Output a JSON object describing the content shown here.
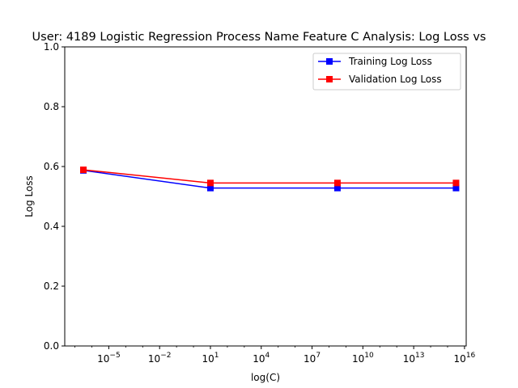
{
  "chart_data": {
    "type": "line",
    "title": "User: 4189 Logistic Regression Process Name Feature C Analysis: Log Loss vs",
    "xlabel": "log(C)",
    "ylabel": "Log Loss",
    "xscale": "log",
    "xlim_exp": [
      -7.6,
      16.1
    ],
    "ylim": [
      0.0,
      1.0
    ],
    "y_ticks": [
      "0.0",
      "0.2",
      "0.4",
      "0.6",
      "0.8",
      "1.0"
    ],
    "y_tick_values": [
      0.0,
      0.2,
      0.4,
      0.6,
      0.8,
      1.0
    ],
    "x_ticks": [
      {
        "exp": -5,
        "base": "10",
        "sup": "−5"
      },
      {
        "exp": -2,
        "base": "10",
        "sup": "−2"
      },
      {
        "exp": 1,
        "base": "10",
        "sup": "1"
      },
      {
        "exp": 4,
        "base": "10",
        "sup": "4"
      },
      {
        "exp": 7,
        "base": "10",
        "sup": "7"
      },
      {
        "exp": 10,
        "base": "10",
        "sup": "10"
      },
      {
        "exp": 13,
        "base": "10",
        "sup": "13"
      },
      {
        "exp": 16,
        "base": "10",
        "sup": "16"
      }
    ],
    "x_exp": [
      -6.5,
      1,
      8.5,
      15.5
    ],
    "legend_position": "top-right",
    "grid": false,
    "series": [
      {
        "name": "Training Log Loss",
        "color": "#0000ff",
        "marker": "square",
        "values": [
          0.587,
          0.528,
          0.528,
          0.528
        ]
      },
      {
        "name": "Validation Log Loss",
        "color": "#ff0000",
        "marker": "square",
        "values": [
          0.589,
          0.545,
          0.545,
          0.545
        ]
      }
    ]
  }
}
